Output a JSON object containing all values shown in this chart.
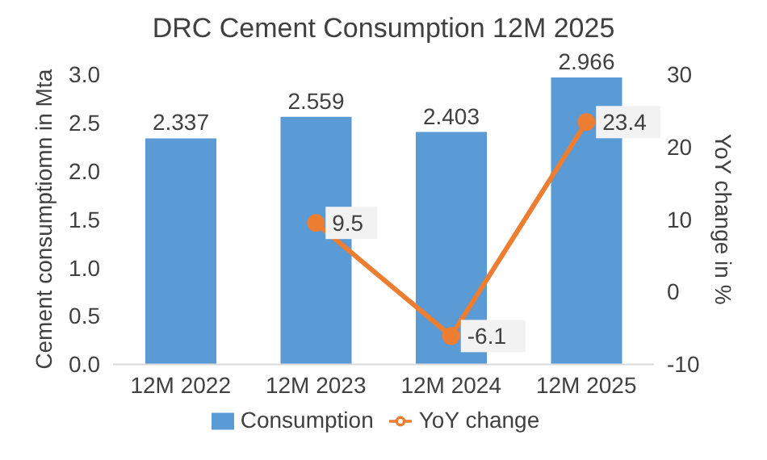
{
  "chart_data": {
    "type": "bar",
    "title": "DRC Cement Consumption 12M 2025",
    "ylabel": "Cement consumptiomn in Mta",
    "y2label": "YoY change in %",
    "categories": [
      "12M 2022",
      "12M 2023",
      "12M 2024",
      "12M 2025"
    ],
    "series": [
      {
        "name": "Consumption",
        "color": "#5b9bd5",
        "values": [
          2.337,
          2.559,
          2.403,
          2.966
        ]
      },
      {
        "name": "YoY change",
        "type": "line",
        "axis": "y2",
        "color": "#ed7d31",
        "values": [
          null,
          9.5,
          -6.1,
          23.4
        ]
      }
    ],
    "ylim": [
      0,
      3
    ],
    "yticks": [
      {
        "value": 0,
        "label": "0.0"
      },
      {
        "value": 0.5,
        "label": "0.5"
      },
      {
        "value": 1,
        "label": "1.0"
      },
      {
        "value": 1.5,
        "label": "1.5"
      },
      {
        "value": 2,
        "label": "2.0"
      },
      {
        "value": 2.5,
        "label": "2.5"
      },
      {
        "value": 3,
        "label": "3.0"
      }
    ],
    "y2lim": [
      -10,
      30
    ],
    "y2ticks": [
      -10,
      0,
      10,
      20,
      30
    ],
    "data_labels": true,
    "legend": "bottom",
    "marker": "circle",
    "grid": false
  }
}
